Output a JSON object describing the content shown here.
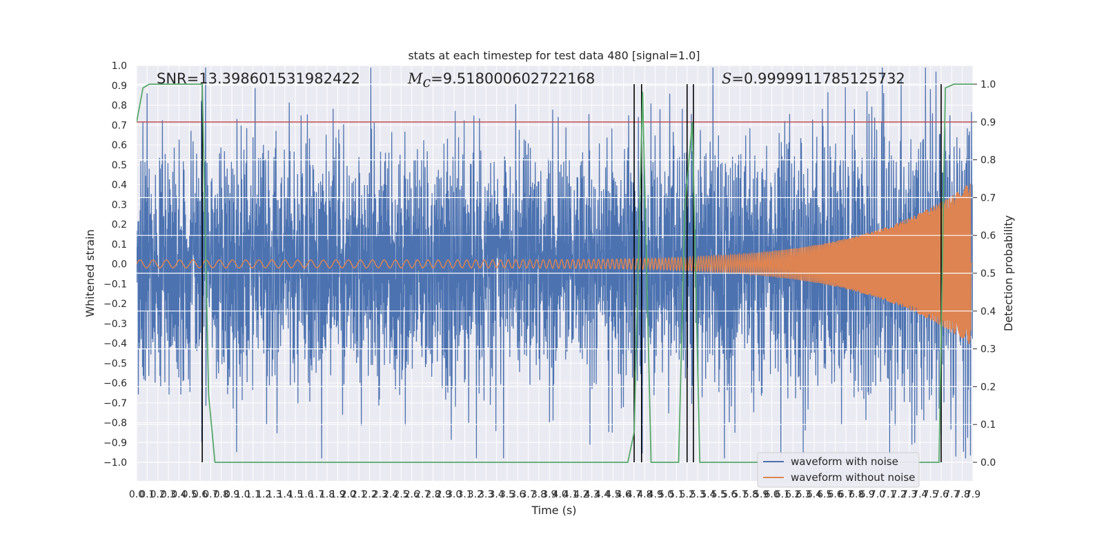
{
  "chart_data": {
    "type": "line",
    "title": "stats at each timestep for test data 480 [signal=1.0]",
    "xlabel": "Time (s)",
    "ylabel": "Whitened strain",
    "y2label": "Detection probability",
    "xlim": [
      0.0,
      7.9
    ],
    "ylim": [
      -1.0,
      1.0
    ],
    "y2lim": [
      0.0,
      1.0
    ],
    "x_ticks": [
      "0.0",
      "0.1",
      "0.2",
      "0.3",
      "0.4",
      "0.5",
      "0.6",
      "0.7",
      "0.8",
      "0.9",
      "1.0",
      "1.1",
      "1.2",
      "1.3",
      "1.4",
      "1.5",
      "1.6",
      "1.7",
      "1.8",
      "1.9",
      "2.0",
      "2.1",
      "2.2",
      "2.3",
      "2.4",
      "2.5",
      "2.6",
      "2.7",
      "2.8",
      "2.9",
      "3.0",
      "3.1",
      "3.2",
      "3.3",
      "3.4",
      "3.5",
      "3.6",
      "3.7",
      "3.8",
      "3.9",
      "4.0",
      "4.1",
      "4.2",
      "4.3",
      "4.4",
      "4.5",
      "4.6",
      "4.7",
      "4.8",
      "4.9",
      "5.0",
      "5.1",
      "5.2",
      "5.3",
      "5.4",
      "5.5",
      "5.6",
      "5.7",
      "5.8",
      "5.9",
      "6.0",
      "6.1",
      "6.2",
      "6.3",
      "6.4",
      "6.5",
      "6.6",
      "6.7",
      "6.8",
      "6.9",
      "7.0",
      "7.1",
      "7.2",
      "7.3",
      "7.4",
      "7.5",
      "7.6",
      "7.7",
      "7.8",
      "7.9"
    ],
    "y_ticks": [
      "1.0",
      "0.9",
      "0.8",
      "0.7",
      "0.6",
      "0.5",
      "0.4",
      "0.3",
      "0.2",
      "0.1",
      "0.0",
      "−0.1",
      "−0.2",
      "−0.3",
      "−0.4",
      "−0.5",
      "−0.6",
      "−0.7",
      "−0.8",
      "−0.9",
      "−1.0"
    ],
    "y2_ticks": [
      "1.0",
      "0.9",
      "0.8",
      "0.7",
      "0.6",
      "0.5",
      "0.4",
      "0.3",
      "0.2",
      "0.1",
      "0.0"
    ],
    "annotations": {
      "snr": "SNR=13.398601531982422",
      "mc_symbol": "M",
      "mc_sub": "c",
      "mc_value": "=9.518000602722168",
      "s_symbol": "S",
      "s_value": "=0.9999911785125732"
    },
    "threshold": {
      "y2": 0.9,
      "color": "#c44e52"
    },
    "event_lines_x": [
      0.62,
      4.7,
      4.77,
      5.2,
      5.26,
      7.6
    ],
    "series": [
      {
        "name": "waveform with noise",
        "color": "#4c72b0",
        "noise_amplitude": 0.5
      },
      {
        "name": "waveform without noise",
        "color": "#dd8452",
        "start_amplitude": 0.02,
        "end_amplitude": 0.42
      },
      {
        "name": "detection probability",
        "color": "#55a868",
        "axis": "y2",
        "x": [
          0.0,
          0.06,
          0.12,
          0.62,
          0.68,
          0.74,
          4.64,
          4.7,
          4.78,
          4.86,
          4.94,
          5.12,
          5.18,
          5.25,
          5.32,
          7.58,
          7.64,
          7.72,
          7.9
        ],
        "y": [
          0.9,
          0.99,
          1.0,
          1.0,
          0.18,
          0.0,
          0.0,
          0.08,
          0.98,
          0.0,
          0.0,
          0.0,
          0.68,
          0.9,
          0.0,
          0.0,
          0.99,
          1.0,
          1.0
        ]
      }
    ],
    "legend": {
      "placement": "lower-right",
      "entries": [
        "waveform with noise",
        "waveform without noise"
      ]
    },
    "grid": true,
    "colors": {
      "background": "#eaeaf2",
      "grid": "#ffffff",
      "event_line": "#000000"
    }
  }
}
